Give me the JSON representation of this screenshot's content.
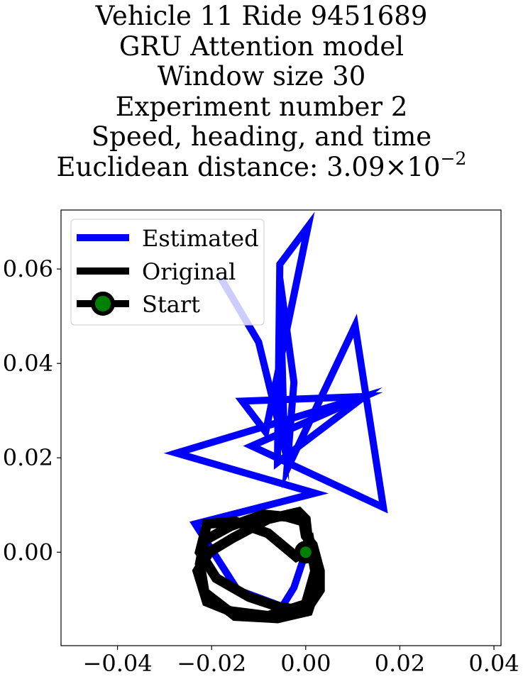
{
  "chart_data": {
    "type": "line",
    "title_lines": [
      "Vehicle 11 Ride 9451689",
      "GRU Attention model",
      "Window size 30",
      "Experiment number 2",
      "Speed, heading, and time"
    ],
    "title_metric": {
      "prefix": "Euclidean distance: ",
      "mantissa": "3.09",
      "times": "×10",
      "exponent": "−2"
    },
    "xlabel": "",
    "ylabel": "",
    "xlim": [
      -0.052,
      0.0415
    ],
    "ylim": [
      -0.0198,
      0.0725
    ],
    "xticks": [
      -0.04,
      -0.02,
      0.0,
      0.02,
      0.04
    ],
    "xtick_labels": [
      "−0.04",
      "−0.02",
      "0.00",
      "0.02",
      "0.04"
    ],
    "yticks": [
      0.0,
      0.02,
      0.04,
      0.06
    ],
    "ytick_labels": [
      "0.00",
      "0.02",
      "0.04",
      "0.06"
    ],
    "grid": false,
    "legend_position": "top-left",
    "legend": [
      "Estimated",
      "Original",
      "Start"
    ],
    "series": [
      {
        "name": "Estimated",
        "color": "#0000ff",
        "x": [
          0,
          -0.0025,
          -0.005,
          -0.0145,
          -0.0235,
          0.002,
          -0.0275,
          0.0125,
          -0.006,
          -0.0055,
          0.0005,
          -0.0085,
          -0.0135,
          0.0125,
          -0.0115,
          0.0165,
          0.0105,
          -0.004,
          -0.0025,
          -0.0055,
          -0.0045,
          -0.01,
          -0.018
        ],
        "y": [
          0,
          -0.0075,
          -0.0115,
          -0.008,
          0.006,
          0.0125,
          0.021,
          0.033,
          0.019,
          0.061,
          0.069,
          0.0255,
          0.032,
          0.033,
          0.0225,
          0.0095,
          0.048,
          0.0175,
          0.036,
          0.058,
          0.022,
          0.0445,
          0.058
        ]
      },
      {
        "name": "Original",
        "color": "#000000",
        "x": [
          0,
          -0.002,
          -0.008,
          -0.015,
          -0.021,
          -0.0225,
          -0.019,
          -0.012,
          -0.006,
          0.0,
          0.003,
          0.003,
          0.0015,
          0.0,
          -0.0005,
          -0.004,
          -0.009,
          -0.016,
          -0.0215,
          -0.0225,
          -0.0215,
          -0.015,
          -0.006,
          0.0005,
          0.0025,
          0.0015,
          0.0005,
          0.0,
          -0.0015,
          -0.008,
          -0.0155,
          -0.0205,
          -0.023,
          -0.021,
          -0.016,
          -0.008,
          0.0,
          0.002,
          0.001,
          0.0
        ],
        "y": [
          0,
          -0.001,
          0.004,
          0.0065,
          0.006,
          0.0,
          -0.0055,
          -0.0095,
          -0.0115,
          -0.0125,
          -0.008,
          -0.004,
          0.0015,
          0.0035,
          0.0065,
          0.0075,
          0.008,
          0.0055,
          0.0025,
          -0.0025,
          -0.0085,
          -0.0135,
          -0.014,
          -0.0125,
          -0.0065,
          -0.001,
          0.0025,
          0.007,
          0.0085,
          0.007,
          0.003,
          0.0,
          -0.004,
          -0.0105,
          -0.0125,
          -0.0135,
          -0.011,
          -0.004,
          0.0015,
          0.0
        ]
      }
    ],
    "start_point": {
      "x": 0.0,
      "y": 0.0,
      "fill": "#008000",
      "edge": "#000000"
    }
  }
}
